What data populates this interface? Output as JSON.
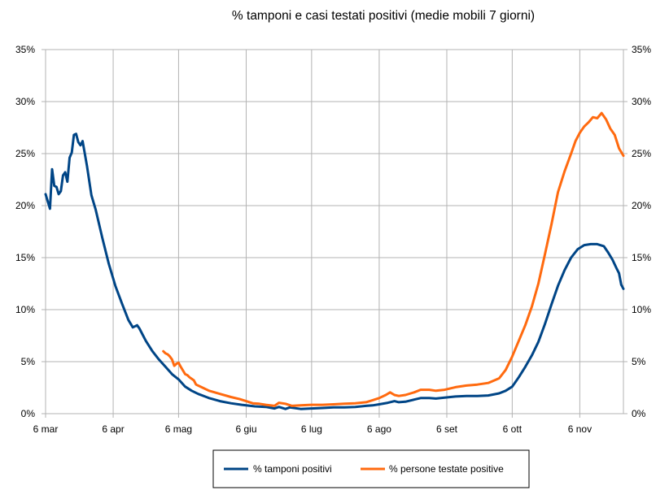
{
  "chart_data": {
    "type": "line",
    "title": "% tamponi e casi testati positivi (medie mobili 7 giorni)",
    "xlabel": "",
    "ylabel": "",
    "x_ticks": [
      "6 mar",
      "6 apr",
      "6 mag",
      "6 giu",
      "6 lug",
      "6 ago",
      "6 set",
      "6 ott",
      "6 nov"
    ],
    "x_range": [
      "2020-03-06",
      "2020-11-26"
    ],
    "ylim": [
      0,
      35
    ],
    "y_ticks": [
      "0%",
      "5%",
      "10%",
      "15%",
      "20%",
      "25%",
      "30%",
      "35%"
    ],
    "y2_ticks": [
      "0%",
      "5%",
      "10%",
      "15%",
      "20%",
      "25%",
      "30%",
      "35%"
    ],
    "grid": true,
    "legend_position": "bottom",
    "series": [
      {
        "name": "% tamponi positivi",
        "color": "#004586",
        "points": [
          [
            "2020-03-06",
            21.1
          ],
          [
            "2020-03-07",
            20.4
          ],
          [
            "2020-03-08",
            19.7
          ],
          [
            "2020-03-09",
            23.5
          ],
          [
            "2020-03-10",
            21.9
          ],
          [
            "2020-03-11",
            21.8
          ],
          [
            "2020-03-12",
            21.1
          ],
          [
            "2020-03-13",
            21.4
          ],
          [
            "2020-03-14",
            22.9
          ],
          [
            "2020-03-15",
            23.2
          ],
          [
            "2020-03-16",
            22.3
          ],
          [
            "2020-03-17",
            24.6
          ],
          [
            "2020-03-18",
            25.1
          ],
          [
            "2020-03-19",
            26.8
          ],
          [
            "2020-03-20",
            26.9
          ],
          [
            "2020-03-21",
            26.1
          ],
          [
            "2020-03-22",
            25.8
          ],
          [
            "2020-03-23",
            26.2
          ],
          [
            "2020-03-24",
            25.0
          ],
          [
            "2020-03-25",
            23.8
          ],
          [
            "2020-03-27",
            21.0
          ],
          [
            "2020-03-29",
            19.6
          ],
          [
            "2020-04-01",
            16.9
          ],
          [
            "2020-04-04",
            14.4
          ],
          [
            "2020-04-07",
            12.3
          ],
          [
            "2020-04-10",
            10.6
          ],
          [
            "2020-04-13",
            9.0
          ],
          [
            "2020-04-15",
            8.3
          ],
          [
            "2020-04-17",
            8.5
          ],
          [
            "2020-04-18",
            8.2
          ],
          [
            "2020-04-21",
            7.0
          ],
          [
            "2020-04-24",
            6.0
          ],
          [
            "2020-04-27",
            5.2
          ],
          [
            "2020-04-30",
            4.5
          ],
          [
            "2020-05-03",
            3.8
          ],
          [
            "2020-05-06",
            3.3
          ],
          [
            "2020-05-09",
            2.6
          ],
          [
            "2020-05-12",
            2.2
          ],
          [
            "2020-05-15",
            1.9
          ],
          [
            "2020-05-20",
            1.5
          ],
          [
            "2020-05-25",
            1.2
          ],
          [
            "2020-05-30",
            1.0
          ],
          [
            "2020-06-04",
            0.85
          ],
          [
            "2020-06-10",
            0.7
          ],
          [
            "2020-06-15",
            0.65
          ],
          [
            "2020-06-19",
            0.5
          ],
          [
            "2020-06-21",
            0.65
          ],
          [
            "2020-06-24",
            0.45
          ],
          [
            "2020-06-26",
            0.6
          ],
          [
            "2020-07-01",
            0.45
          ],
          [
            "2020-07-06",
            0.5
          ],
          [
            "2020-07-11",
            0.55
          ],
          [
            "2020-07-16",
            0.6
          ],
          [
            "2020-07-21",
            0.6
          ],
          [
            "2020-07-26",
            0.65
          ],
          [
            "2020-07-31",
            0.75
          ],
          [
            "2020-08-03",
            0.8
          ],
          [
            "2020-08-06",
            0.9
          ],
          [
            "2020-08-10",
            1.05
          ],
          [
            "2020-08-13",
            1.2
          ],
          [
            "2020-08-15",
            1.1
          ],
          [
            "2020-08-18",
            1.15
          ],
          [
            "2020-08-22",
            1.35
          ],
          [
            "2020-08-25",
            1.5
          ],
          [
            "2020-08-29",
            1.5
          ],
          [
            "2020-09-01",
            1.45
          ],
          [
            "2020-09-05",
            1.55
          ],
          [
            "2020-09-10",
            1.65
          ],
          [
            "2020-09-15",
            1.7
          ],
          [
            "2020-09-20",
            1.7
          ],
          [
            "2020-09-25",
            1.75
          ],
          [
            "2020-09-30",
            1.95
          ],
          [
            "2020-10-03",
            2.2
          ],
          [
            "2020-10-06",
            2.6
          ],
          [
            "2020-10-09",
            3.5
          ],
          [
            "2020-10-12",
            4.5
          ],
          [
            "2020-10-15",
            5.6
          ],
          [
            "2020-10-18",
            6.9
          ],
          [
            "2020-10-21",
            8.6
          ],
          [
            "2020-10-24",
            10.5
          ],
          [
            "2020-10-27",
            12.3
          ],
          [
            "2020-10-30",
            13.8
          ],
          [
            "2020-11-02",
            15.0
          ],
          [
            "2020-11-05",
            15.8
          ],
          [
            "2020-11-08",
            16.2
          ],
          [
            "2020-11-11",
            16.3
          ],
          [
            "2020-11-14",
            16.3
          ],
          [
            "2020-11-17",
            16.1
          ],
          [
            "2020-11-19",
            15.5
          ],
          [
            "2020-11-21",
            14.8
          ],
          [
            "2020-11-23",
            13.9
          ],
          [
            "2020-11-24",
            13.5
          ],
          [
            "2020-11-25",
            12.4
          ],
          [
            "2020-11-26",
            12.0
          ]
        ]
      },
      {
        "name": "% persone testate positive",
        "color": "#ff6a0f",
        "points": [
          [
            "2020-04-29",
            6.0
          ],
          [
            "2020-04-30",
            5.8
          ],
          [
            "2020-05-01",
            5.7
          ],
          [
            "2020-05-02",
            5.5
          ],
          [
            "2020-05-03",
            5.2
          ],
          [
            "2020-05-04",
            4.6
          ],
          [
            "2020-05-05",
            4.8
          ],
          [
            "2020-05-06",
            4.9
          ],
          [
            "2020-05-07",
            4.5
          ],
          [
            "2020-05-09",
            3.8
          ],
          [
            "2020-05-10",
            3.7
          ],
          [
            "2020-05-11",
            3.5
          ],
          [
            "2020-05-13",
            3.2
          ],
          [
            "2020-05-14",
            2.8
          ],
          [
            "2020-05-17",
            2.5
          ],
          [
            "2020-05-20",
            2.2
          ],
          [
            "2020-05-25",
            1.9
          ],
          [
            "2020-05-30",
            1.6
          ],
          [
            "2020-06-03",
            1.4
          ],
          [
            "2020-06-06",
            1.2
          ],
          [
            "2020-06-09",
            1.0
          ],
          [
            "2020-06-12",
            0.95
          ],
          [
            "2020-06-15",
            0.85
          ],
          [
            "2020-06-19",
            0.75
          ],
          [
            "2020-06-21",
            1.05
          ],
          [
            "2020-06-24",
            0.95
          ],
          [
            "2020-06-27",
            0.75
          ],
          [
            "2020-07-01",
            0.8
          ],
          [
            "2020-07-06",
            0.85
          ],
          [
            "2020-07-11",
            0.85
          ],
          [
            "2020-07-16",
            0.9
          ],
          [
            "2020-07-21",
            0.95
          ],
          [
            "2020-07-26",
            1.0
          ],
          [
            "2020-07-31",
            1.1
          ],
          [
            "2020-08-03",
            1.3
          ],
          [
            "2020-08-06",
            1.5
          ],
          [
            "2020-08-09",
            1.8
          ],
          [
            "2020-08-11",
            2.05
          ],
          [
            "2020-08-13",
            1.8
          ],
          [
            "2020-08-15",
            1.7
          ],
          [
            "2020-08-18",
            1.8
          ],
          [
            "2020-08-22",
            2.05
          ],
          [
            "2020-08-25",
            2.3
          ],
          [
            "2020-08-29",
            2.3
          ],
          [
            "2020-09-01",
            2.2
          ],
          [
            "2020-09-05",
            2.3
          ],
          [
            "2020-09-10",
            2.55
          ],
          [
            "2020-09-15",
            2.7
          ],
          [
            "2020-09-20",
            2.8
          ],
          [
            "2020-09-25",
            2.95
          ],
          [
            "2020-09-30",
            3.4
          ],
          [
            "2020-10-03",
            4.2
          ],
          [
            "2020-10-06",
            5.5
          ],
          [
            "2020-10-09",
            7.0
          ],
          [
            "2020-10-12",
            8.5
          ],
          [
            "2020-10-15",
            10.3
          ],
          [
            "2020-10-18",
            12.5
          ],
          [
            "2020-10-21",
            15.3
          ],
          [
            "2020-10-24",
            18.2
          ],
          [
            "2020-10-27",
            21.3
          ],
          [
            "2020-10-30",
            23.3
          ],
          [
            "2020-11-02",
            25.0
          ],
          [
            "2020-11-04",
            26.2
          ],
          [
            "2020-11-06",
            27.0
          ],
          [
            "2020-11-08",
            27.6
          ],
          [
            "2020-11-10",
            28.0
          ],
          [
            "2020-11-12",
            28.5
          ],
          [
            "2020-11-14",
            28.4
          ],
          [
            "2020-11-16",
            28.9
          ],
          [
            "2020-11-18",
            28.3
          ],
          [
            "2020-11-20",
            27.4
          ],
          [
            "2020-11-22",
            26.8
          ],
          [
            "2020-11-24",
            25.5
          ],
          [
            "2020-11-26",
            24.8
          ]
        ]
      }
    ]
  }
}
